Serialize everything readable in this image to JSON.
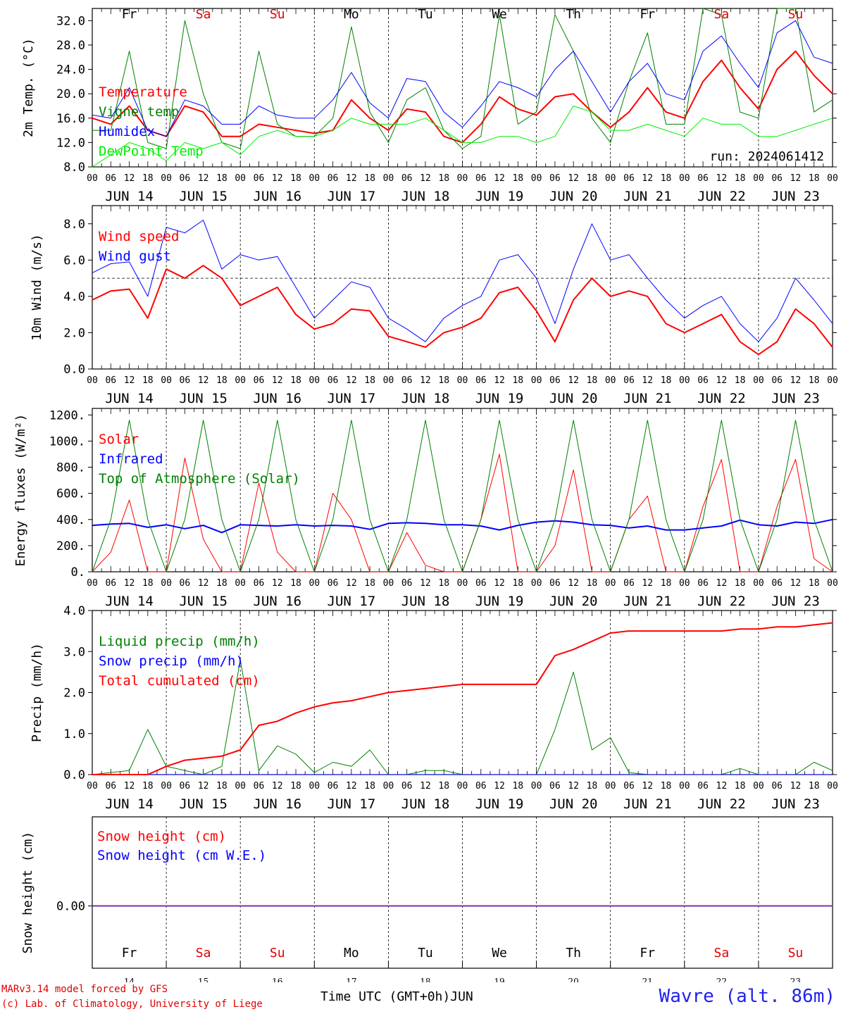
{
  "footer": {
    "credit_line1": "MARv3.14 model forced by GFS",
    "credit_line2": "(c) Lab. of Climatology, University of Liege",
    "station": "Wavre (alt. 86m)",
    "time_label": "Time UTC (GMT+0h)JUN"
  },
  "chart_data": [
    {
      "type": "line",
      "ylabel": "2m Temp. (°C)",
      "ylim": [
        8,
        34
      ],
      "yticks": [
        "8.0",
        "12.0",
        "16.0",
        "20.0",
        "24.0",
        "28.0",
        "32.0"
      ],
      "day_names": [
        "Fr",
        "Sa",
        "Su",
        "Mo",
        "Tu",
        "We",
        "Th",
        "Fr",
        "Sa",
        "Su"
      ],
      "weekend_color": "#e00000",
      "annotation": "run: 2024061412",
      "x_hours": [
        0,
        6,
        12,
        18,
        24,
        30,
        36,
        42,
        48,
        54,
        60,
        66,
        72,
        78,
        84,
        90,
        96,
        102,
        108,
        114,
        120,
        126,
        132,
        138,
        144,
        150,
        156,
        162,
        168,
        174,
        180,
        186,
        192,
        198,
        204,
        210,
        216,
        222,
        228,
        234,
        240
      ],
      "series": [
        {
          "name": "Temperature",
          "color": "#ff0000",
          "width": 2,
          "values": [
            16,
            15,
            18,
            14,
            13,
            18,
            17,
            13,
            13,
            15,
            14.5,
            14,
            13.5,
            14,
            19,
            16,
            14,
            17.5,
            17,
            13,
            12,
            15,
            19.5,
            17.5,
            16.5,
            19.5,
            20,
            17,
            14.5,
            17,
            21,
            17,
            16,
            22,
            25.5,
            21,
            17.5,
            24,
            27,
            23,
            20
          ]
        },
        {
          "name": "Vigne temp",
          "color": "#008000",
          "width": 1,
          "values": [
            14,
            14,
            27,
            12,
            11,
            32,
            20,
            12,
            11,
            27,
            15,
            13,
            13,
            16,
            31,
            17,
            12,
            19,
            21,
            14,
            11,
            13,
            33,
            15,
            17,
            33,
            27,
            16,
            12,
            22,
            30,
            15,
            15,
            34,
            33,
            17,
            16,
            34,
            34,
            17,
            19
          ]
        },
        {
          "name": "Humidex",
          "color": "#0000ff",
          "width": 1,
          "values": [
            16.5,
            16,
            21,
            14,
            13,
            19,
            18,
            15,
            15,
            18,
            16.5,
            16,
            16,
            19,
            23.5,
            18.5,
            16,
            22.5,
            22,
            17,
            14.5,
            18,
            22,
            21,
            19.5,
            24,
            27,
            22,
            17,
            22,
            25,
            20,
            19,
            27,
            29.5,
            25,
            21,
            30,
            32,
            26,
            25
          ]
        },
        {
          "name": "DewPoint Temp",
          "color": "#00ee00",
          "width": 1,
          "values": [
            8,
            10,
            12,
            11,
            9,
            12,
            11,
            12,
            10,
            13,
            14,
            13,
            13,
            14,
            16,
            15,
            15,
            15,
            16,
            14,
            12,
            12,
            13,
            13,
            12,
            13,
            18,
            17,
            14,
            14,
            15,
            14,
            13,
            16,
            15,
            15,
            13,
            13,
            14,
            15,
            16
          ]
        }
      ]
    },
    {
      "type": "line",
      "ylabel": "10m Wind (m/s)",
      "ylim": [
        0,
        9
      ],
      "yticks": [
        "0.0",
        "2.0",
        "4.0",
        "6.0",
        "8.0"
      ],
      "reference_line": 5,
      "x_hours": [
        0,
        6,
        12,
        18,
        24,
        30,
        36,
        42,
        48,
        54,
        60,
        66,
        72,
        78,
        84,
        90,
        96,
        102,
        108,
        114,
        120,
        126,
        132,
        138,
        144,
        150,
        156,
        162,
        168,
        174,
        180,
        186,
        192,
        198,
        204,
        210,
        216,
        222,
        228,
        234,
        240
      ],
      "series": [
        {
          "name": "Wind speed",
          "color": "#ff0000",
          "width": 2,
          "values": [
            3.8,
            4.3,
            4.4,
            2.8,
            5.5,
            5,
            5.7,
            5,
            3.5,
            4,
            4.5,
            3,
            2.2,
            2.5,
            3.3,
            3.2,
            1.8,
            1.5,
            1.2,
            2,
            2.3,
            2.8,
            4.2,
            4.5,
            3.2,
            1.5,
            3.8,
            5,
            4,
            4.3,
            4,
            2.5,
            2,
            2.5,
            3,
            1.5,
            0.8,
            1.5,
            3.3,
            2.5,
            1.2
          ]
        },
        {
          "name": "Wind gust",
          "color": "#0000ff",
          "width": 1,
          "values": [
            5.3,
            5.8,
            5.9,
            4,
            7.8,
            7.5,
            8.2,
            5.5,
            6.3,
            6,
            6.2,
            4.5,
            2.8,
            3.8,
            4.8,
            4.5,
            2.8,
            2.2,
            1.5,
            2.8,
            3.5,
            4,
            6,
            6.3,
            5,
            2.5,
            5.5,
            8,
            6,
            6.3,
            5,
            3.8,
            2.8,
            3.5,
            4,
            2.5,
            1.5,
            2.8,
            5,
            3.8,
            2.5
          ]
        }
      ]
    },
    {
      "type": "line",
      "ylabel": "Energy fluxes (W/m²)",
      "ylim": [
        0,
        1250
      ],
      "yticks": [
        "0.",
        "200.",
        "400.",
        "600.",
        "800.",
        "1000.",
        "1200."
      ],
      "x_hours": [
        0,
        6,
        12,
        18,
        24,
        30,
        36,
        42,
        48,
        54,
        60,
        66,
        72,
        78,
        84,
        90,
        96,
        102,
        108,
        114,
        120,
        126,
        132,
        138,
        144,
        150,
        156,
        162,
        168,
        174,
        180,
        186,
        192,
        198,
        204,
        210,
        216,
        222,
        228,
        234,
        240
      ],
      "series": [
        {
          "name": "Solar",
          "color": "#ff0000",
          "width": 1,
          "values": [
            0,
            150,
            550,
            0,
            0,
            870,
            250,
            0,
            0,
            680,
            150,
            0,
            0,
            600,
            400,
            0,
            0,
            300,
            50,
            0,
            0,
            400,
            900,
            0,
            0,
            200,
            780,
            0,
            0,
            400,
            580,
            0,
            0,
            500,
            860,
            0,
            0,
            500,
            860,
            100,
            0
          ]
        },
        {
          "name": "Infrared",
          "color": "#0000ff",
          "width": 2,
          "values": [
            355,
            365,
            370,
            340,
            360,
            330,
            355,
            300,
            360,
            355,
            350,
            360,
            350,
            355,
            350,
            325,
            370,
            375,
            370,
            360,
            360,
            350,
            320,
            355,
            380,
            390,
            380,
            360,
            355,
            335,
            350,
            320,
            320,
            335,
            350,
            395,
            360,
            350,
            380,
            370,
            400
          ]
        },
        {
          "name": "Top of Atmosphere (Solar)",
          "color": "#008000",
          "width": 1,
          "values": [
            0,
            400,
            1160,
            400,
            0,
            400,
            1160,
            400,
            0,
            400,
            1160,
            400,
            0,
            400,
            1160,
            400,
            0,
            400,
            1160,
            400,
            0,
            400,
            1160,
            400,
            0,
            400,
            1160,
            400,
            0,
            400,
            1160,
            400,
            0,
            400,
            1160,
            400,
            0,
            400,
            1160,
            400,
            0
          ]
        }
      ]
    },
    {
      "type": "line",
      "ylabel": "Precip (mm/h)",
      "ylim": [
        0,
        4
      ],
      "yticks": [
        "0.0",
        "1.0",
        "2.0",
        "3.0",
        "4.0"
      ],
      "x_hours": [
        0,
        6,
        12,
        18,
        24,
        30,
        36,
        42,
        48,
        54,
        60,
        66,
        72,
        78,
        84,
        90,
        96,
        102,
        108,
        114,
        120,
        126,
        132,
        138,
        144,
        150,
        156,
        162,
        168,
        174,
        180,
        186,
        192,
        198,
        204,
        210,
        216,
        222,
        228,
        234,
        240
      ],
      "series": [
        {
          "name": "Liquid precip (mm/h)",
          "color": "#008000",
          "width": 1,
          "values": [
            0,
            0.05,
            0.1,
            1.1,
            0.2,
            0.1,
            0,
            0.2,
            2.8,
            0.1,
            0.7,
            0.5,
            0.05,
            0.3,
            0.2,
            0.6,
            0,
            0,
            0.1,
            0.1,
            0,
            0,
            0,
            0,
            0,
            1.1,
            2.5,
            0.6,
            0.9,
            0.05,
            0,
            0,
            0,
            0,
            0,
            0.15,
            0,
            0,
            0,
            0.3,
            0.1
          ]
        },
        {
          "name": "Snow precip (mm/h)",
          "color": "#0000ff",
          "width": 1,
          "values": [
            0,
            0,
            0,
            0,
            0,
            0,
            0,
            0,
            0,
            0,
            0,
            0,
            0,
            0,
            0,
            0,
            0,
            0,
            0,
            0,
            0,
            0,
            0,
            0,
            0,
            0,
            0,
            0,
            0,
            0,
            0,
            0,
            0,
            0,
            0,
            0,
            0,
            0,
            0,
            0,
            0
          ]
        },
        {
          "name": "Total cumulated (cm)",
          "color": "#ff0000",
          "width": 2,
          "values": [
            0,
            0,
            0,
            0,
            0.2,
            0.35,
            0.4,
            0.45,
            0.6,
            1.2,
            1.3,
            1.5,
            1.65,
            1.75,
            1.8,
            1.9,
            2,
            2.05,
            2.1,
            2.15,
            2.2,
            2.2,
            2.2,
            2.2,
            2.2,
            2.9,
            3.05,
            3.25,
            3.45,
            3.5,
            3.5,
            3.5,
            3.5,
            3.5,
            3.5,
            3.55,
            3.55,
            3.6,
            3.6,
            3.65,
            3.7
          ]
        }
      ]
    },
    {
      "type": "line",
      "ylabel": "Snow height (cm)",
      "yticks": [
        "0.00"
      ],
      "series": [
        {
          "name": "Snow height (cm)",
          "color": "#ff0000",
          "values": [
            0,
            0
          ]
        },
        {
          "name": "Snow height (cm W.E.)",
          "color": "#0000ff",
          "values": [
            0,
            0
          ]
        }
      ],
      "day_names": [
        "Fr",
        "Sa",
        "Su",
        "Mo",
        "Tu",
        "We",
        "Th",
        "Fr",
        "Sa",
        "Su"
      ],
      "day_numbers": [
        "14",
        "15",
        "16",
        "17",
        "18",
        "19",
        "20",
        "21",
        "22",
        "23"
      ]
    }
  ],
  "axis": {
    "hour_labels": [
      "00",
      "06",
      "12",
      "18"
    ],
    "date_labels": [
      "JUN 14",
      "JUN 15",
      "JUN 16",
      "JUN 17",
      "JUN 18",
      "JUN 19",
      "JUN 20",
      "JUN 21",
      "JUN 22",
      "JUN 23"
    ]
  }
}
